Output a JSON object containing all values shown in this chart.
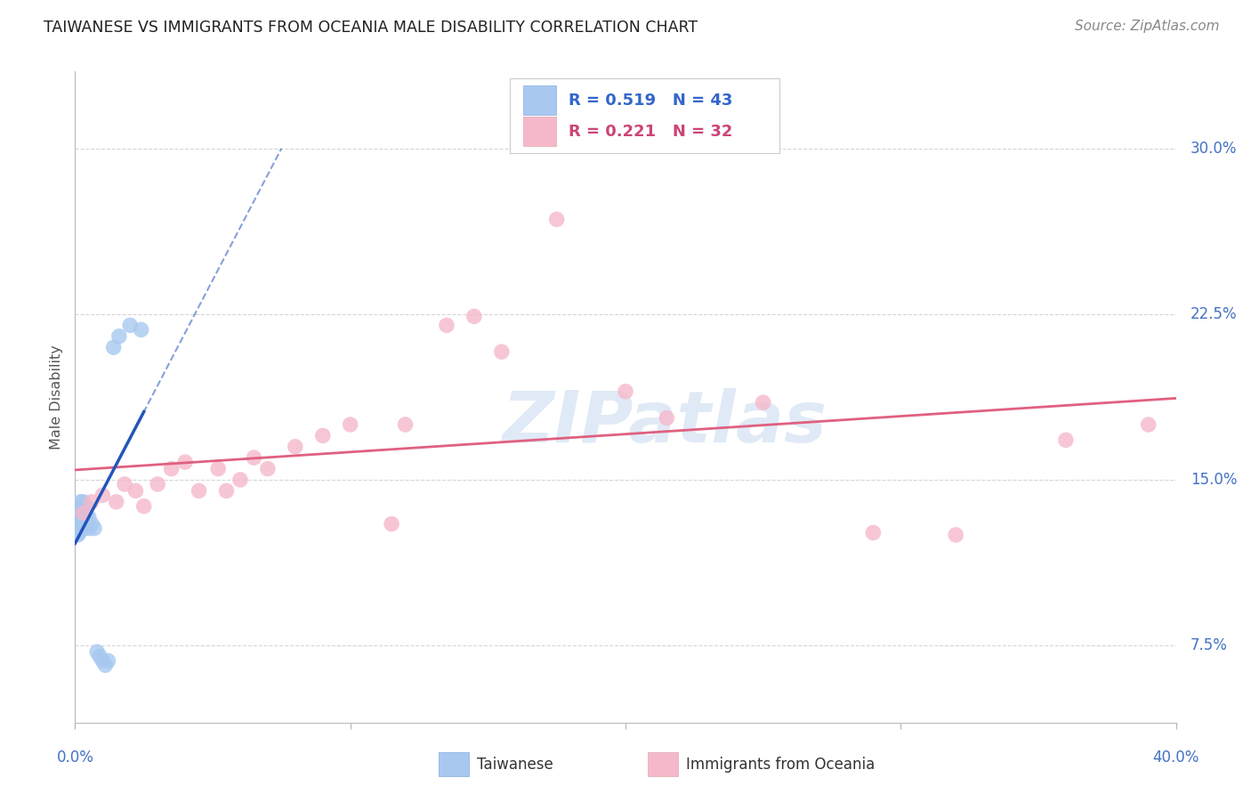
{
  "title": "TAIWANESE VS IMMIGRANTS FROM OCEANIA MALE DISABILITY CORRELATION CHART",
  "source": "Source: ZipAtlas.com",
  "ylabel": "Male Disability",
  "xmin": 0.0,
  "xmax": 0.4,
  "ymin": 0.04,
  "ymax": 0.335,
  "ytick_vals": [
    0.075,
    0.15,
    0.225,
    0.3
  ],
  "ytick_labels": [
    "7.5%",
    "15.0%",
    "22.5%",
    "30.0%"
  ],
  "watermark_text": "ZIPatlas",
  "R1": 0.519,
  "N1": 43,
  "R2": 0.221,
  "N2": 32,
  "blue_color": "#a8c8f0",
  "pink_color": "#f5b8cb",
  "blue_line_color": "#2255bb",
  "pink_line_color": "#e06080",
  "background": "#ffffff",
  "grid_color": "#cccccc",
  "title_color": "#222222",
  "source_color": "#888888",
  "axis_label_color": "#555555",
  "right_tick_color": "#4472c4",
  "bottom_label_color": "#4472c4",
  "tw_x": [
    0.0005,
    0.0005,
    0.0008,
    0.0008,
    0.001,
    0.001,
    0.001,
    0.001,
    0.001,
    0.0012,
    0.0012,
    0.0015,
    0.0015,
    0.0015,
    0.0015,
    0.002,
    0.002,
    0.002,
    0.002,
    0.002,
    0.0025,
    0.0025,
    0.0025,
    0.003,
    0.003,
    0.003,
    0.003,
    0.004,
    0.004,
    0.004,
    0.005,
    0.005,
    0.006,
    0.007,
    0.008,
    0.009,
    0.01,
    0.011,
    0.012,
    0.014,
    0.016,
    0.02,
    0.024
  ],
  "tw_y": [
    0.13,
    0.135,
    0.128,
    0.132,
    0.125,
    0.13,
    0.132,
    0.135,
    0.138,
    0.128,
    0.133,
    0.126,
    0.13,
    0.133,
    0.137,
    0.127,
    0.13,
    0.133,
    0.136,
    0.14,
    0.128,
    0.132,
    0.136,
    0.128,
    0.132,
    0.136,
    0.14,
    0.13,
    0.134,
    0.138,
    0.128,
    0.133,
    0.13,
    0.128,
    0.072,
    0.07,
    0.068,
    0.066,
    0.068,
    0.21,
    0.215,
    0.22,
    0.218
  ],
  "oc_x": [
    0.003,
    0.006,
    0.01,
    0.015,
    0.018,
    0.022,
    0.025,
    0.03,
    0.035,
    0.04,
    0.045,
    0.052,
    0.055,
    0.06,
    0.065,
    0.07,
    0.08,
    0.09,
    0.1,
    0.115,
    0.12,
    0.135,
    0.145,
    0.155,
    0.175,
    0.2,
    0.215,
    0.25,
    0.29,
    0.32,
    0.36,
    0.39
  ],
  "oc_y": [
    0.135,
    0.14,
    0.143,
    0.14,
    0.148,
    0.145,
    0.138,
    0.148,
    0.155,
    0.158,
    0.145,
    0.155,
    0.145,
    0.15,
    0.16,
    0.155,
    0.165,
    0.17,
    0.175,
    0.13,
    0.175,
    0.22,
    0.224,
    0.208,
    0.268,
    0.19,
    0.178,
    0.185,
    0.126,
    0.125,
    0.168,
    0.175
  ]
}
